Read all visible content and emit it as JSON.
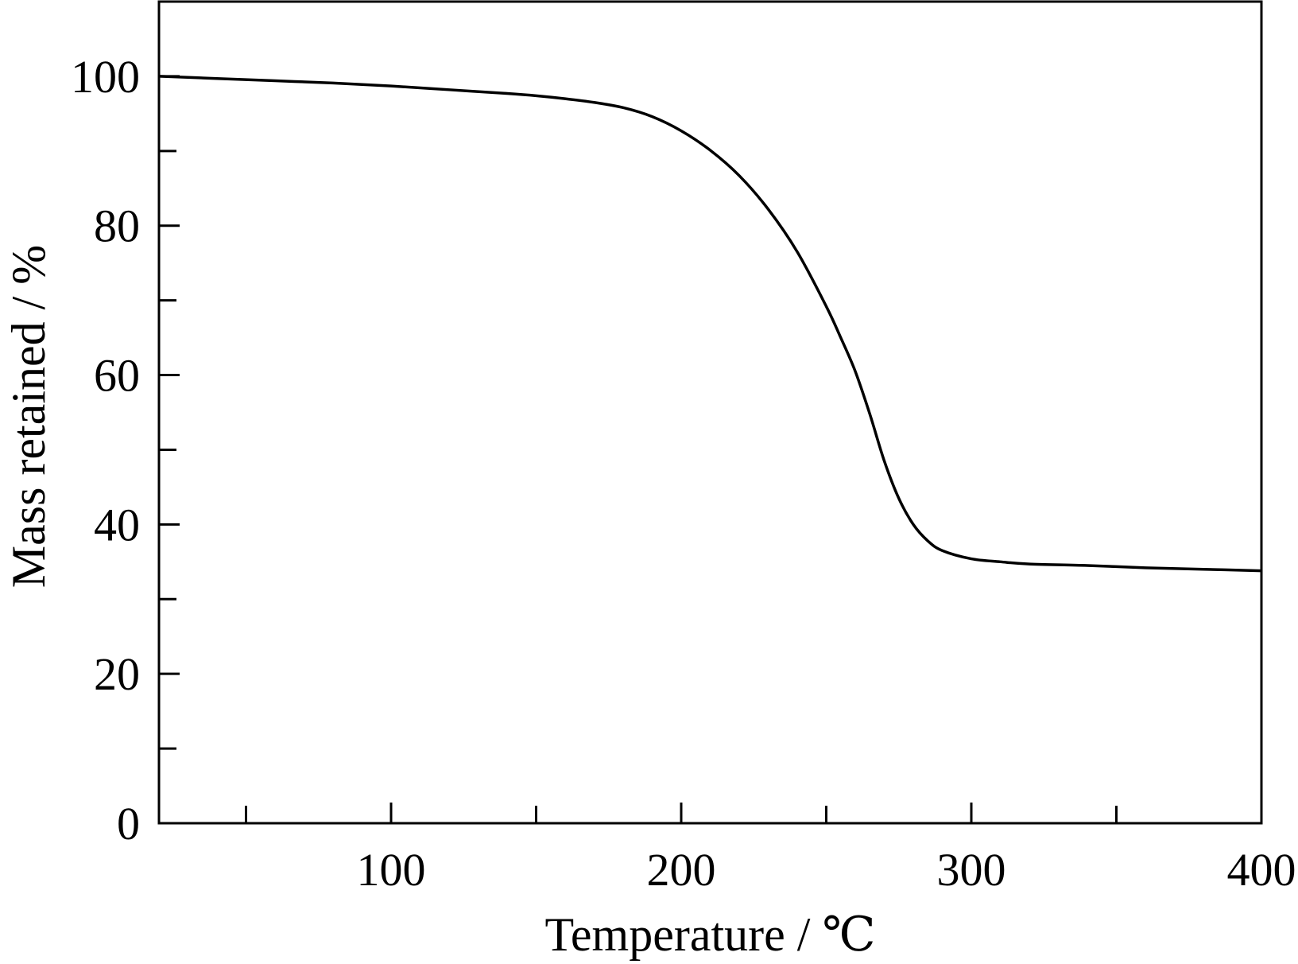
{
  "chart_data": {
    "type": "line",
    "xlabel": "Temperature / ℃",
    "ylabel": "Mass retained / %",
    "xlim": [
      20,
      400
    ],
    "ylim": [
      0,
      110
    ],
    "x_ticks": [
      100,
      200,
      300,
      400
    ],
    "x_minor_ticks": [
      50,
      150,
      250,
      350
    ],
    "y_ticks": [
      0,
      20,
      40,
      60,
      80,
      100
    ],
    "y_minor_ticks": [
      10,
      30,
      50,
      70,
      90
    ],
    "grid": false,
    "legend": "none",
    "line_color": "#000000",
    "series": [
      {
        "x": [
          20,
          40,
          60,
          80,
          100,
          120,
          140,
          150,
          160,
          170,
          180,
          190,
          200,
          210,
          220,
          230,
          240,
          250,
          255,
          260,
          265,
          270,
          275,
          280,
          285,
          290,
          300,
          310,
          320,
          340,
          360,
          380,
          400
        ],
        "y": [
          100.0,
          99.7,
          99.4,
          99.1,
          98.7,
          98.2,
          97.7,
          97.4,
          97.0,
          96.5,
          95.8,
          94.6,
          92.7,
          90.1,
          86.7,
          82.2,
          76.5,
          69.2,
          65.0,
          60.5,
          54.8,
          48.5,
          43.5,
          40.0,
          37.8,
          36.5,
          35.4,
          35.0,
          34.7,
          34.5,
          34.2,
          34.0,
          33.8
        ]
      }
    ]
  }
}
